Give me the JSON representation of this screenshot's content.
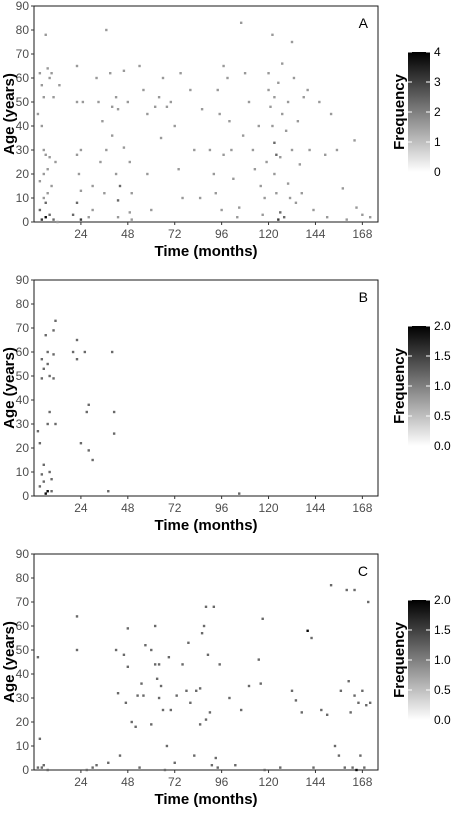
{
  "chart_data": [
    {
      "type": "heatmap",
      "panel": "A",
      "xlabel": "Time (months)",
      "ylabel": "Age (years)",
      "xlim": [
        0,
        176
      ],
      "ylim": [
        0,
        90
      ],
      "x_ticks": [
        "24",
        "48",
        "72",
        "96",
        "120",
        "144",
        "168"
      ],
      "y_ticks": [
        "0",
        "10",
        "20",
        "30",
        "40",
        "50",
        "60",
        "70",
        "80",
        "90"
      ],
      "legend": {
        "title": "Frequency",
        "min": 0,
        "max": 4,
        "ticks": [
          "0",
          "1",
          "2",
          "3",
          "4"
        ]
      },
      "points": [
        [
          3,
          62,
          1
        ],
        [
          4,
          57,
          1
        ],
        [
          5,
          52,
          1
        ],
        [
          6,
          78,
          1
        ],
        [
          7,
          64,
          1
        ],
        [
          8,
          60,
          1
        ],
        [
          9,
          62,
          1
        ],
        [
          10,
          52,
          1
        ],
        [
          4,
          40,
          1
        ],
        [
          5,
          30,
          1
        ],
        [
          6,
          28,
          1
        ],
        [
          7,
          22,
          1
        ],
        [
          8,
          27,
          1
        ],
        [
          3,
          17,
          1
        ],
        [
          5,
          20,
          1
        ],
        [
          6,
          8,
          2
        ],
        [
          4,
          1,
          3
        ],
        [
          6,
          2,
          4
        ],
        [
          8,
          3,
          2
        ],
        [
          10,
          1,
          2
        ],
        [
          12,
          0,
          1
        ],
        [
          3,
          5,
          2
        ],
        [
          5,
          10,
          1
        ],
        [
          7,
          12,
          1
        ],
        [
          9,
          15,
          1
        ],
        [
          11,
          25,
          1
        ],
        [
          2,
          45,
          1
        ],
        [
          13,
          57,
          1
        ],
        [
          22,
          65,
          1
        ],
        [
          22,
          50,
          1
        ],
        [
          25,
          50,
          1
        ],
        [
          24,
          30,
          1
        ],
        [
          22,
          28,
          1
        ],
        [
          23,
          20,
          1
        ],
        [
          24,
          13,
          1
        ],
        [
          22,
          8,
          2
        ],
        [
          24,
          1,
          3
        ],
        [
          20,
          3,
          2
        ],
        [
          28,
          2,
          1
        ],
        [
          30,
          5,
          1
        ],
        [
          30,
          15,
          1
        ],
        [
          32,
          60,
          1
        ],
        [
          33,
          50,
          1
        ],
        [
          35,
          42,
          1
        ],
        [
          34,
          25,
          1
        ],
        [
          36,
          12,
          1
        ],
        [
          37,
          30,
          1
        ],
        [
          37,
          80,
          1
        ],
        [
          39,
          62,
          1
        ],
        [
          40,
          48,
          1
        ],
        [
          40,
          36,
          1
        ],
        [
          42,
          52,
          1
        ],
        [
          43,
          47,
          1
        ],
        [
          42,
          20,
          1
        ],
        [
          43,
          9,
          2
        ],
        [
          44,
          15,
          2
        ],
        [
          43,
          2,
          1
        ],
        [
          46,
          31,
          1
        ],
        [
          46,
          63,
          1
        ],
        [
          48,
          50,
          1
        ],
        [
          49,
          25,
          1
        ],
        [
          50,
          12,
          1
        ],
        [
          49,
          4,
          1
        ],
        [
          50,
          1,
          1
        ],
        [
          54,
          65,
          1
        ],
        [
          56,
          55,
          1
        ],
        [
          58,
          45,
          1
        ],
        [
          58,
          20,
          1
        ],
        [
          60,
          5,
          1
        ],
        [
          62,
          48,
          1
        ],
        [
          64,
          52,
          1
        ],
        [
          65,
          35,
          1
        ],
        [
          66,
          60,
          1
        ],
        [
          68,
          48,
          1
        ],
        [
          70,
          50,
          1
        ],
        [
          72,
          40,
          1
        ],
        [
          74,
          22,
          1
        ],
        [
          75,
          62,
          1
        ],
        [
          76,
          10,
          1
        ],
        [
          80,
          55,
          1
        ],
        [
          82,
          30,
          1
        ],
        [
          85,
          10,
          1
        ],
        [
          86,
          47,
          1
        ],
        [
          90,
          30,
          1
        ],
        [
          92,
          20,
          1
        ],
        [
          93,
          12,
          1
        ],
        [
          94,
          55,
          1
        ],
        [
          95,
          45,
          1
        ],
        [
          96,
          5,
          1
        ],
        [
          97,
          28,
          1
        ],
        [
          97,
          65,
          1
        ],
        [
          99,
          60,
          1
        ],
        [
          100,
          42,
          1
        ],
        [
          101,
          30,
          1
        ],
        [
          102,
          18,
          1
        ],
        [
          104,
          2,
          1
        ],
        [
          105,
          6,
          1
        ],
        [
          106,
          83,
          1
        ],
        [
          107,
          36,
          1
        ],
        [
          108,
          62,
          1
        ],
        [
          110,
          50,
          1
        ],
        [
          112,
          30,
          1
        ],
        [
          113,
          22,
          1
        ],
        [
          115,
          40,
          1
        ],
        [
          116,
          15,
          1
        ],
        [
          117,
          3,
          1
        ],
        [
          118,
          10,
          1
        ],
        [
          119,
          25,
          1
        ],
        [
          120,
          55,
          1
        ],
        [
          120,
          62,
          1
        ],
        [
          121,
          48,
          1
        ],
        [
          122,
          78,
          1
        ],
        [
          122,
          40,
          1
        ],
        [
          123,
          52,
          1
        ],
        [
          123,
          33,
          2
        ],
        [
          123,
          20,
          1
        ],
        [
          124,
          28,
          2
        ],
        [
          124,
          12,
          1
        ],
        [
          125,
          58,
          1
        ],
        [
          125,
          1,
          3
        ],
        [
          126,
          4,
          2
        ],
        [
          126,
          27,
          1
        ],
        [
          127,
          45,
          1
        ],
        [
          127,
          66,
          1
        ],
        [
          128,
          2,
          2
        ],
        [
          129,
          38,
          1
        ],
        [
          130,
          50,
          1
        ],
        [
          130,
          16,
          1
        ],
        [
          131,
          10,
          1
        ],
        [
          132,
          30,
          1
        ],
        [
          132,
          75,
          1
        ],
        [
          133,
          60,
          1
        ],
        [
          134,
          8,
          1
        ],
        [
          135,
          42,
          1
        ],
        [
          136,
          24,
          1
        ],
        [
          137,
          12,
          1
        ],
        [
          138,
          52,
          1
        ],
        [
          140,
          55,
          1
        ],
        [
          141,
          30,
          1
        ],
        [
          143,
          5,
          1
        ],
        [
          146,
          50,
          1
        ],
        [
          149,
          28,
          1
        ],
        [
          150,
          2,
          1
        ],
        [
          152,
          45,
          1
        ],
        [
          155,
          30,
          1
        ],
        [
          158,
          14,
          1
        ],
        [
          160,
          1,
          1
        ],
        [
          164,
          34,
          1
        ],
        [
          165,
          6,
          1
        ],
        [
          168,
          3,
          1
        ],
        [
          172,
          2,
          1
        ]
      ]
    },
    {
      "type": "heatmap",
      "panel": "B",
      "xlabel": "Time (months)",
      "ylabel": "Age (years)",
      "xlim": [
        0,
        176
      ],
      "ylim": [
        0,
        90
      ],
      "x_ticks": [
        "24",
        "48",
        "72",
        "96",
        "120",
        "144",
        "168"
      ],
      "y_ticks": [
        "0",
        "10",
        "20",
        "30",
        "40",
        "50",
        "60",
        "70",
        "80",
        "90"
      ],
      "legend": {
        "title": "Frequency",
        "min": 0,
        "max": 2,
        "ticks": [
          "0.0",
          "0.5",
          "1.0",
          "1.5",
          "2.0"
        ]
      },
      "points": [
        [
          2,
          27,
          1
        ],
        [
          3,
          22,
          1
        ],
        [
          3,
          4,
          1
        ],
        [
          4,
          49,
          1
        ],
        [
          4,
          57,
          1
        ],
        [
          5,
          53,
          1
        ],
        [
          5,
          6,
          1
        ],
        [
          6,
          1,
          2
        ],
        [
          6,
          67,
          1
        ],
        [
          7,
          60,
          1
        ],
        [
          7,
          55,
          1
        ],
        [
          7,
          30,
          1
        ],
        [
          7,
          2,
          2
        ],
        [
          8,
          10,
          1
        ],
        [
          8,
          35,
          1
        ],
        [
          9,
          7,
          1
        ],
        [
          9,
          2,
          1
        ],
        [
          10,
          69,
          1
        ],
        [
          10,
          49,
          1
        ],
        [
          10,
          59,
          1
        ],
        [
          11,
          73,
          1
        ],
        [
          11,
          30,
          1
        ],
        [
          8,
          50,
          1
        ],
        [
          5,
          13,
          1
        ],
        [
          4,
          9,
          1
        ],
        [
          20,
          60,
          1
        ],
        [
          22,
          57,
          1
        ],
        [
          22,
          65,
          1
        ],
        [
          24,
          22,
          1
        ],
        [
          26,
          60,
          1
        ],
        [
          27,
          35,
          1
        ],
        [
          28,
          38,
          1
        ],
        [
          28,
          19,
          1
        ],
        [
          30,
          15,
          1
        ],
        [
          38,
          2,
          1
        ],
        [
          40,
          60,
          1
        ],
        [
          41,
          35,
          1
        ],
        [
          41,
          26,
          1
        ],
        [
          105,
          1,
          1
        ]
      ]
    },
    {
      "type": "heatmap",
      "panel": "C",
      "xlabel": "Time (months)",
      "ylabel": "Age (years)",
      "xlim": [
        0,
        176
      ],
      "ylim": [
        0,
        90
      ],
      "x_ticks": [
        "24",
        "48",
        "72",
        "96",
        "120",
        "144",
        "168"
      ],
      "y_ticks": [
        "0",
        "10",
        "20",
        "30",
        "40",
        "50",
        "60",
        "70",
        "80",
        "90"
      ],
      "legend": {
        "title": "Frequency",
        "min": 0,
        "max": 2,
        "ticks": [
          "0.0",
          "0.5",
          "1.0",
          "1.5",
          "2.0"
        ]
      },
      "points": [
        [
          2,
          47,
          1
        ],
        [
          2,
          1,
          1
        ],
        [
          3,
          13,
          1
        ],
        [
          4,
          1,
          1
        ],
        [
          5,
          2,
          1
        ],
        [
          7,
          0,
          1
        ],
        [
          22,
          64,
          1
        ],
        [
          22,
          50,
          1
        ],
        [
          27,
          0,
          1
        ],
        [
          30,
          1,
          1
        ],
        [
          32,
          2,
          1
        ],
        [
          38,
          3,
          1
        ],
        [
          42,
          50,
          1
        ],
        [
          43,
          32,
          1
        ],
        [
          44,
          6,
          1
        ],
        [
          46,
          48,
          1
        ],
        [
          47,
          28,
          1
        ],
        [
          48,
          43,
          1
        ],
        [
          48,
          59,
          1
        ],
        [
          50,
          20,
          1
        ],
        [
          52,
          18,
          1
        ],
        [
          53,
          31,
          1
        ],
        [
          54,
          1,
          1
        ],
        [
          55,
          36,
          1
        ],
        [
          56,
          31,
          1
        ],
        [
          57,
          52,
          1
        ],
        [
          60,
          19,
          1
        ],
        [
          60,
          50,
          1
        ],
        [
          62,
          60,
          1
        ],
        [
          62,
          44,
          1
        ],
        [
          63,
          38,
          1
        ],
        [
          64,
          30,
          1
        ],
        [
          64,
          44,
          1
        ],
        [
          65,
          35,
          1
        ],
        [
          66,
          25,
          1
        ],
        [
          67,
          0,
          1
        ],
        [
          68,
          10,
          1
        ],
        [
          69,
          47,
          1
        ],
        [
          70,
          25,
          1
        ],
        [
          72,
          3,
          1
        ],
        [
          73,
          31,
          1
        ],
        [
          76,
          44,
          1
        ],
        [
          78,
          33,
          1
        ],
        [
          79,
          53,
          1
        ],
        [
          80,
          28,
          1
        ],
        [
          82,
          6,
          1
        ],
        [
          83,
          33,
          1
        ],
        [
          85,
          19,
          1
        ],
        [
          85,
          34,
          1
        ],
        [
          86,
          57,
          1
        ],
        [
          87,
          60,
          1
        ],
        [
          88,
          68,
          1
        ],
        [
          88,
          21,
          1
        ],
        [
          89,
          48,
          1
        ],
        [
          90,
          24,
          1
        ],
        [
          91,
          2,
          1
        ],
        [
          92,
          68,
          1
        ],
        [
          93,
          5,
          1
        ],
        [
          94,
          1,
          1
        ],
        [
          95,
          44,
          1
        ],
        [
          100,
          30,
          1
        ],
        [
          103,
          2,
          1
        ],
        [
          106,
          25,
          1
        ],
        [
          110,
          35,
          1
        ],
        [
          115,
          46,
          1
        ],
        [
          116,
          36,
          1
        ],
        [
          117,
          63,
          1
        ],
        [
          118,
          0,
          1
        ],
        [
          126,
          1,
          1
        ],
        [
          132,
          33,
          1
        ],
        [
          134,
          29,
          1
        ],
        [
          137,
          24,
          1
        ],
        [
          140,
          58,
          2
        ],
        [
          142,
          55,
          1
        ],
        [
          143,
          1,
          1
        ],
        [
          147,
          25,
          1
        ],
        [
          150,
          23,
          1
        ],
        [
          152,
          77,
          1
        ],
        [
          154,
          10,
          1
        ],
        [
          156,
          6,
          1
        ],
        [
          157,
          33,
          1
        ],
        [
          159,
          1,
          1
        ],
        [
          160,
          75,
          1
        ],
        [
          161,
          37,
          1
        ],
        [
          162,
          24,
          1
        ],
        [
          163,
          1,
          1
        ],
        [
          164,
          75,
          1
        ],
        [
          164,
          31,
          1
        ],
        [
          165,
          0,
          2
        ],
        [
          166,
          28,
          1
        ],
        [
          167,
          6,
          1
        ],
        [
          168,
          33,
          1
        ],
        [
          170,
          27,
          1
        ],
        [
          171,
          70,
          1
        ],
        [
          172,
          28,
          1
        ],
        [
          169,
          1,
          1
        ]
      ]
    }
  ]
}
